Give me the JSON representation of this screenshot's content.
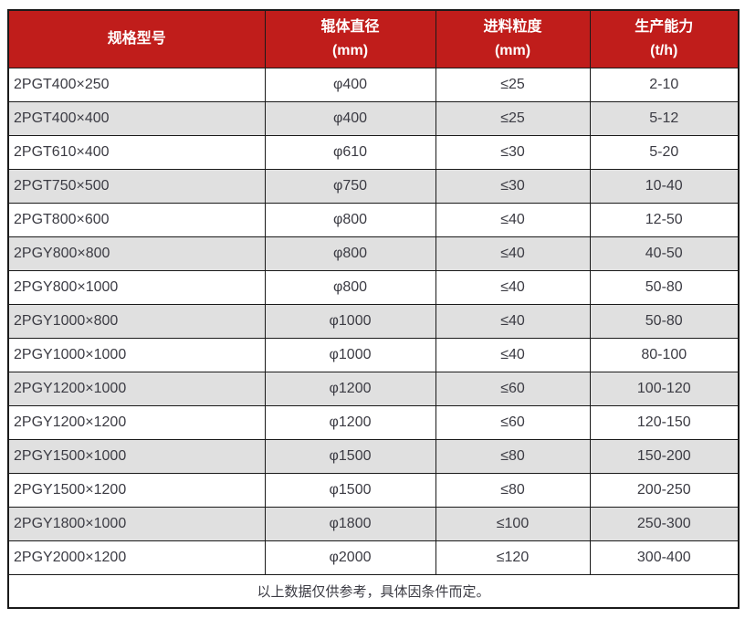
{
  "colors": {
    "header_bg": "#c01d1b",
    "header_text": "#ffffff",
    "row_bg": "#ffffff",
    "row_alt_bg": "#e0e0e0",
    "border": "#1a1a1a",
    "text": "#3b3b43"
  },
  "table": {
    "columns": [
      {
        "label": "规格型号",
        "unit": ""
      },
      {
        "label": "辊体直径",
        "unit": "(mm)"
      },
      {
        "label": "进料粒度",
        "unit": "(mm)"
      },
      {
        "label": "生产能力",
        "unit": "(t/h)"
      }
    ],
    "rows": [
      [
        "2PGT400×250",
        "φ400",
        "≤25",
        "2-10"
      ],
      [
        "2PGT400×400",
        "φ400",
        "≤25",
        "5-12"
      ],
      [
        "2PGT610×400",
        "φ610",
        "≤30",
        "5-20"
      ],
      [
        "2PGT750×500",
        "φ750",
        "≤30",
        "10-40"
      ],
      [
        "2PGT800×600",
        "φ800",
        "≤40",
        "12-50"
      ],
      [
        "2PGY800×800",
        "φ800",
        "≤40",
        "40-50"
      ],
      [
        "2PGY800×1000",
        "φ800",
        "≤40",
        "50-80"
      ],
      [
        "2PGY1000×800",
        "φ1000",
        "≤40",
        "50-80"
      ],
      [
        "2PGY1000×1000",
        "φ1000",
        "≤40",
        "80-100"
      ],
      [
        "2PGY1200×1000",
        "φ1200",
        "≤60",
        "100-120"
      ],
      [
        "2PGY1200×1200",
        "φ1200",
        "≤60",
        "120-150"
      ],
      [
        "2PGY1500×1000",
        "φ1500",
        "≤80",
        "150-200"
      ],
      [
        "2PGY1500×1200",
        "φ1500",
        "≤80",
        "200-250"
      ],
      [
        "2PGY1800×1000",
        "φ1800",
        "≤100",
        "250-300"
      ],
      [
        "2PGY2000×1200",
        "φ2000",
        "≤120",
        "300-400"
      ]
    ],
    "footnote": "以上数据仅供参考，具体因条件而定。"
  }
}
